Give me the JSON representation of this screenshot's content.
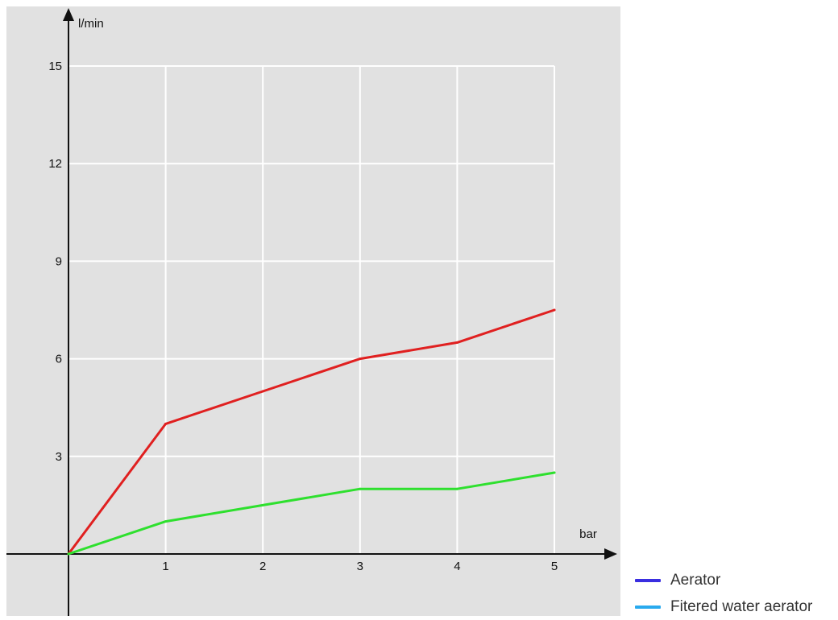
{
  "chart_data": {
    "type": "line",
    "title": "",
    "xlabel": "bar",
    "ylabel": "l/min",
    "x": [
      0,
      1,
      2,
      3,
      4,
      5
    ],
    "xticks": [
      1,
      2,
      3,
      4,
      5
    ],
    "yticks": [
      3,
      6,
      9,
      12,
      15
    ],
    "xlim": [
      0,
      5
    ],
    "ylim": [
      0,
      15
    ],
    "grid": true,
    "legend_position": "bottom-right",
    "series": [
      {
        "values": [
          0,
          4,
          5,
          6,
          6.5,
          7.5
        ],
        "color": "#e02020"
      },
      {
        "values": [
          0,
          1,
          1.5,
          2,
          2,
          2.5
        ],
        "color": "#2ee02e"
      }
    ],
    "legend": [
      {
        "label": "Aerator",
        "color": "#3a2ee0"
      },
      {
        "label": "Fitered water aerator",
        "color": "#29aaee"
      }
    ]
  },
  "colors": {
    "plot_background": "#e1e1e1",
    "grid": "#ffffff",
    "axis": "#111111"
  }
}
